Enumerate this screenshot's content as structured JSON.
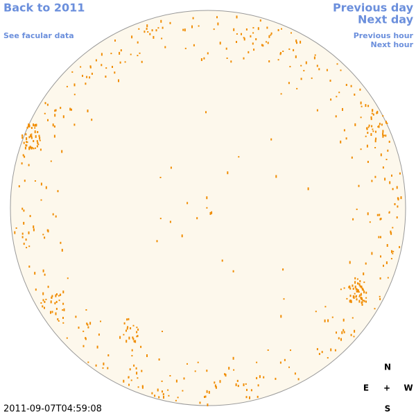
{
  "links": {
    "back_year": "Back to 2011",
    "previous_day": "Previous day",
    "next_day": "Next day",
    "facular_data": "See facular data",
    "previous_hour": "Previous hour",
    "next_hour": "Next hour"
  },
  "timestamp": "2011-09-07T04:59:08",
  "compass": {
    "north": "N",
    "east": "E",
    "center": "+",
    "west": "W",
    "south": "S"
  }
}
